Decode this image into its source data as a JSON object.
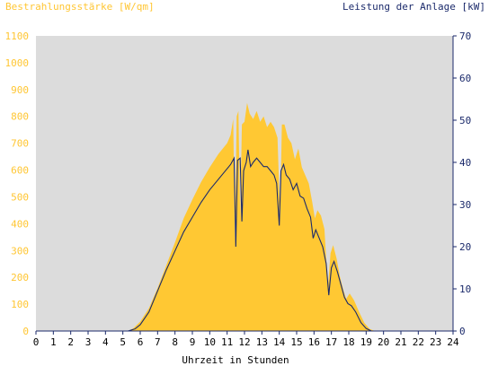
{
  "chart_data": {
    "type": "area",
    "left_axis_title": "Bestrahlungsstärke [W/qm]",
    "right_axis_title": "Leistung der Anlage [kW]",
    "xlabel": "Uhrzeit in Stunden",
    "xlim": [
      0,
      24
    ],
    "ylim_left": [
      0,
      1100
    ],
    "ylim_right": [
      0,
      70
    ],
    "x_ticks": [
      "0",
      "1",
      "2",
      "3",
      "4",
      "5",
      "6",
      "7",
      "8",
      "9",
      "10",
      "11",
      "12",
      "13",
      "14",
      "15",
      "16",
      "17",
      "18",
      "19",
      "20",
      "21",
      "22",
      "23",
      "24"
    ],
    "y_ticks_left": [
      "0",
      "100",
      "200",
      "300",
      "400",
      "500",
      "600",
      "700",
      "800",
      "900",
      "1000",
      "1100"
    ],
    "y_ticks_right": [
      "0",
      "10",
      "20",
      "30",
      "40",
      "50",
      "60",
      "70"
    ],
    "colors": {
      "irradiance_fill": "#ffc833",
      "power_line": "#1b2a6b",
      "plot_background": "#dcdcdc",
      "left_axis_text": "#ffc633",
      "right_axis_text": "#1b2a6b"
    },
    "series": [
      {
        "axis": "left",
        "style": "filled-area",
        "points": [
          [
            0,
            0
          ],
          [
            5.3,
            0
          ],
          [
            5.6,
            10
          ],
          [
            6,
            35
          ],
          [
            6.5,
            85
          ],
          [
            7,
            160
          ],
          [
            7.5,
            245
          ],
          [
            8,
            330
          ],
          [
            8.5,
            420
          ],
          [
            9,
            490
          ],
          [
            9.5,
            555
          ],
          [
            10,
            610
          ],
          [
            10.5,
            660
          ],
          [
            11,
            700
          ],
          [
            11.2,
            730
          ],
          [
            11.35,
            790
          ],
          [
            11.45,
            330
          ],
          [
            11.55,
            800
          ],
          [
            11.65,
            820
          ],
          [
            11.75,
            420
          ],
          [
            11.85,
            770
          ],
          [
            12,
            780
          ],
          [
            12.15,
            850
          ],
          [
            12.3,
            810
          ],
          [
            12.5,
            790
          ],
          [
            12.7,
            820
          ],
          [
            12.9,
            780
          ],
          [
            13.1,
            800
          ],
          [
            13.3,
            760
          ],
          [
            13.5,
            780
          ],
          [
            13.7,
            760
          ],
          [
            13.9,
            720
          ],
          [
            14.05,
            420
          ],
          [
            14.15,
            770
          ],
          [
            14.3,
            770
          ],
          [
            14.5,
            720
          ],
          [
            14.7,
            700
          ],
          [
            14.9,
            640
          ],
          [
            15.1,
            680
          ],
          [
            15.3,
            610
          ],
          [
            15.5,
            580
          ],
          [
            15.7,
            550
          ],
          [
            15.9,
            480
          ],
          [
            16.05,
            420
          ],
          [
            16.2,
            450
          ],
          [
            16.4,
            430
          ],
          [
            16.6,
            380
          ],
          [
            16.8,
            160
          ],
          [
            16.95,
            290
          ],
          [
            17.1,
            320
          ],
          [
            17.3,
            270
          ],
          [
            17.5,
            200
          ],
          [
            17.7,
            150
          ],
          [
            17.85,
            120
          ],
          [
            18.05,
            140
          ],
          [
            18.3,
            115
          ],
          [
            18.6,
            70
          ],
          [
            18.9,
            30
          ],
          [
            19.2,
            8
          ],
          [
            19.5,
            0
          ],
          [
            24,
            0
          ]
        ]
      },
      {
        "axis": "right",
        "style": "line",
        "points": [
          [
            0,
            0
          ],
          [
            5.3,
            0
          ],
          [
            5.7,
            0.5
          ],
          [
            6,
            1.5
          ],
          [
            6.5,
            4.5
          ],
          [
            7,
            9.5
          ],
          [
            7.5,
            14.5
          ],
          [
            8,
            19
          ],
          [
            8.5,
            23.5
          ],
          [
            9,
            27
          ],
          [
            9.5,
            30.5
          ],
          [
            10,
            33.5
          ],
          [
            10.5,
            36
          ],
          [
            11,
            38.5
          ],
          [
            11.2,
            39.5
          ],
          [
            11.4,
            41
          ],
          [
            11.5,
            20
          ],
          [
            11.6,
            40.5
          ],
          [
            11.75,
            41
          ],
          [
            11.85,
            26
          ],
          [
            11.95,
            38
          ],
          [
            12.1,
            40
          ],
          [
            12.2,
            43
          ],
          [
            12.35,
            39
          ],
          [
            12.5,
            40
          ],
          [
            12.7,
            41
          ],
          [
            12.9,
            40
          ],
          [
            13.1,
            39
          ],
          [
            13.3,
            39
          ],
          [
            13.5,
            38
          ],
          [
            13.7,
            37
          ],
          [
            13.85,
            35
          ],
          [
            14,
            25
          ],
          [
            14.1,
            38
          ],
          [
            14.25,
            39.5
          ],
          [
            14.4,
            37
          ],
          [
            14.6,
            36
          ],
          [
            14.8,
            33.5
          ],
          [
            15,
            35
          ],
          [
            15.2,
            32
          ],
          [
            15.4,
            31.5
          ],
          [
            15.6,
            29
          ],
          [
            15.8,
            27
          ],
          [
            15.95,
            22
          ],
          [
            16.1,
            24
          ],
          [
            16.3,
            22
          ],
          [
            16.5,
            20
          ],
          [
            16.7,
            16
          ],
          [
            16.85,
            8.5
          ],
          [
            17,
            15
          ],
          [
            17.15,
            16.5
          ],
          [
            17.35,
            14
          ],
          [
            17.55,
            11
          ],
          [
            17.75,
            8
          ],
          [
            17.95,
            6.5
          ],
          [
            18.15,
            6
          ],
          [
            18.4,
            4.5
          ],
          [
            18.7,
            2
          ],
          [
            19,
            0.6
          ],
          [
            19.3,
            0
          ],
          [
            24,
            0
          ]
        ]
      }
    ]
  }
}
